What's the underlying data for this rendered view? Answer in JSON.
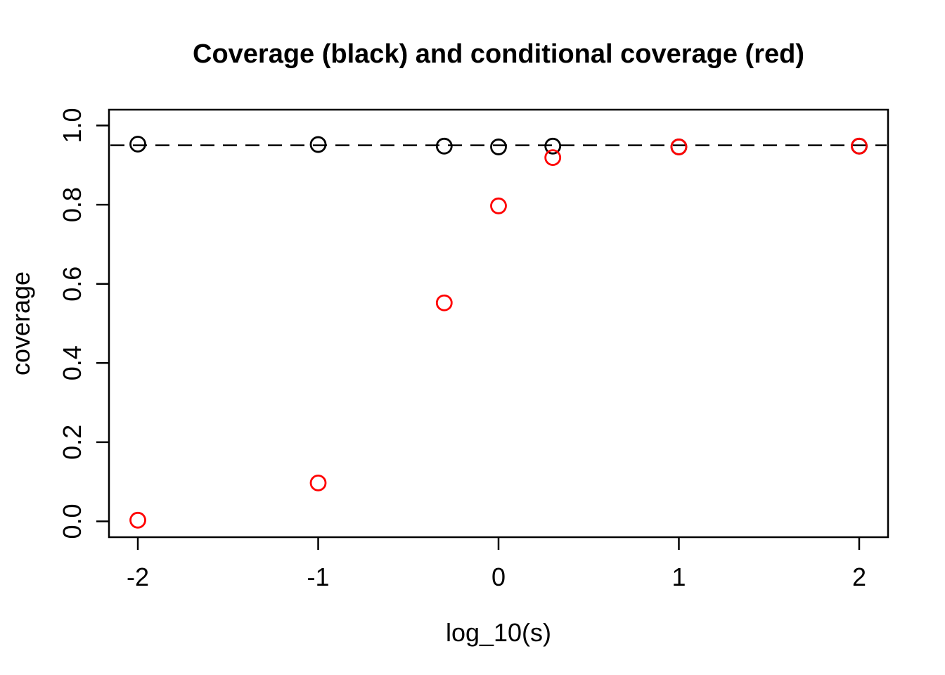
{
  "page": {
    "background": "#ffffff"
  },
  "chart_data": {
    "type": "scatter",
    "title": "Coverage (black) and conditional coverage (red)",
    "xlabel": "log_10(s)",
    "ylabel": "coverage",
    "x_tick_labels": [
      "-2",
      "-1",
      "0",
      "1",
      "2"
    ],
    "x_tick_values": [
      -2,
      -1,
      0,
      1,
      2
    ],
    "y_tick_labels": [
      "0.0",
      "0.2",
      "0.4",
      "0.6",
      "0.8",
      "1.0"
    ],
    "y_tick_values": [
      0,
      0.2,
      0.4,
      0.6,
      0.8,
      1.0
    ],
    "xlim": [
      -2.16,
      2.16
    ],
    "ylim": [
      -0.04,
      1.04
    ],
    "grid": false,
    "legend_position": "none",
    "frame_color": "#000000",
    "reference_line": {
      "y": 0.95,
      "style": "dashed",
      "color": "#000000"
    },
    "marker": {
      "shape": "open-circle",
      "radius_px": 10.5,
      "stroke_px": 2.8
    },
    "x": [
      -2,
      -1,
      -0.301,
      0,
      0.301,
      1,
      2
    ],
    "series": [
      {
        "name": "coverage",
        "color": "#000000",
        "values": [
          0.953,
          0.952,
          0.948,
          0.946,
          0.948,
          0.946,
          0.948
        ]
      },
      {
        "name": "conditional coverage",
        "color": "#ff0000",
        "values": [
          0.003,
          0.097,
          0.552,
          0.797,
          0.919,
          0.946,
          0.948
        ]
      }
    ]
  }
}
